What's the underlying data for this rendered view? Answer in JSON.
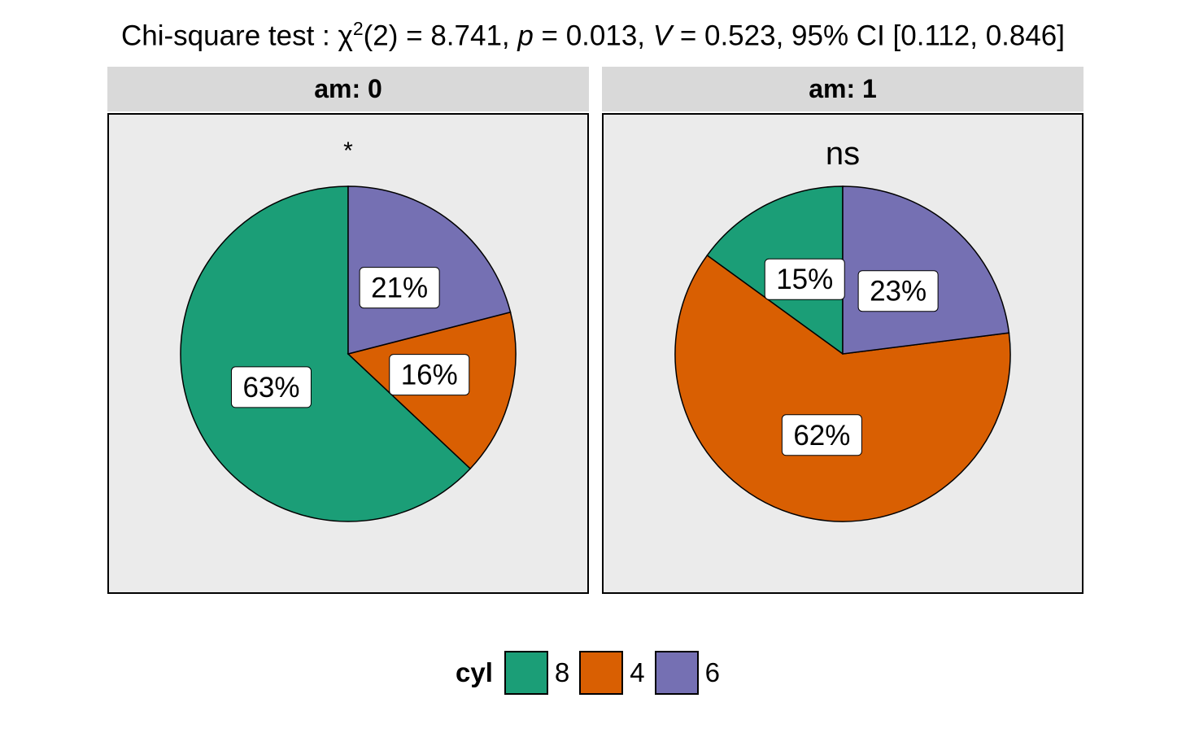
{
  "chart_data": {
    "type": "pie",
    "title": {
      "prefix": "Chi-square test : ",
      "chi": "χ",
      "sup": "2",
      "df_text": "(2) = 8.741, ",
      "p_symbol": "p",
      "p_text": " = 0.013, ",
      "v_symbol": "V",
      "v_text": " = 0.523, 95% CI [0.112, 0.846]"
    },
    "legend": {
      "title": "cyl",
      "position": "bottom",
      "entries": [
        {
          "label": "8",
          "color": "#1b9e77"
        },
        {
          "label": "4",
          "color": "#d95f02"
        },
        {
          "label": "6",
          "color": "#7570b3"
        }
      ]
    },
    "panels": [
      {
        "strip": "am: 0",
        "significance": "*",
        "slices": [
          {
            "category": "8",
            "value": 63,
            "label": "63%",
            "color": "#1b9e77"
          },
          {
            "category": "4",
            "value": 16,
            "label": "16%",
            "color": "#d95f02"
          },
          {
            "category": "6",
            "value": 21,
            "label": "21%",
            "color": "#7570b3"
          }
        ]
      },
      {
        "strip": "am: 1",
        "significance": "ns",
        "slices": [
          {
            "category": "8",
            "value": 15,
            "label": "15%",
            "color": "#1b9e77"
          },
          {
            "category": "4",
            "value": 62,
            "label": "62%",
            "color": "#d95f02"
          },
          {
            "category": "6",
            "value": 23,
            "label": "23%",
            "color": "#7570b3"
          }
        ]
      }
    ]
  }
}
